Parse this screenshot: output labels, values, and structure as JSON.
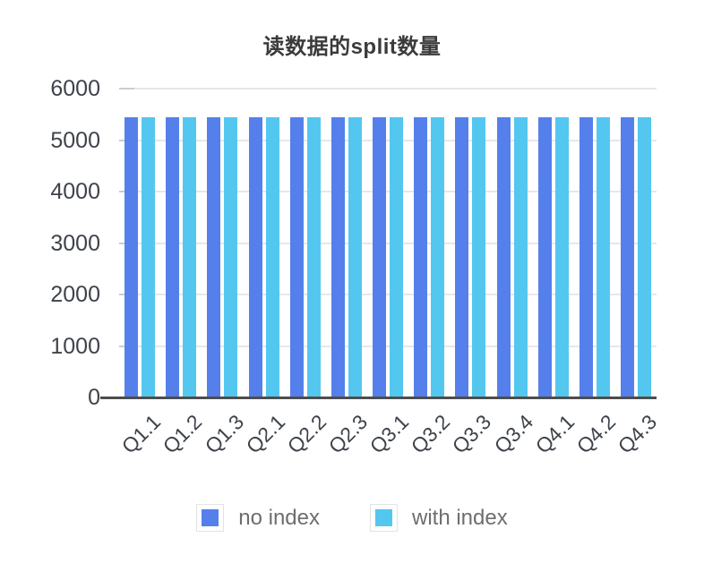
{
  "colors": {
    "series_no_index": "#5580EC",
    "series_with_index": "#54C7F0",
    "title_text": "#3B3B3B",
    "axis_label_text": "#3E434B",
    "legend_text": "#6E6E6E",
    "gridline": "#E7E7E7",
    "axis_tick": "#CCCCCC",
    "axis_line": "#4D4D4D",
    "background": "#FFFFFF",
    "legend_swatch_border": "#E3E3E3"
  },
  "chart_data": {
    "type": "bar",
    "title": "读数据的split数量",
    "xlabel": "",
    "ylabel": "",
    "categories": [
      "Q1.1",
      "Q1.2",
      "Q1.3",
      "Q2.1",
      "Q2.2",
      "Q2.3",
      "Q3.1",
      "Q3.2",
      "Q3.3",
      "Q3.4",
      "Q4.1",
      "Q4.2",
      "Q4.3"
    ],
    "series": [
      {
        "name": "no index",
        "color": "#5580EC",
        "values": [
          5450,
          5450,
          5450,
          5450,
          5450,
          5450,
          5450,
          5450,
          5450,
          5450,
          5450,
          5450,
          5450
        ]
      },
      {
        "name": "with index",
        "color": "#54C7F0",
        "values": [
          5450,
          5450,
          5450,
          5450,
          5450,
          5450,
          5450,
          5450,
          5450,
          5450,
          5450,
          5450,
          5450
        ]
      }
    ],
    "ylim": [
      0,
      6000
    ],
    "yticks": [
      0,
      1000,
      2000,
      3000,
      4000,
      5000,
      6000
    ],
    "grid": true,
    "legend_position": "bottom",
    "x_tick_rotation": -45
  }
}
